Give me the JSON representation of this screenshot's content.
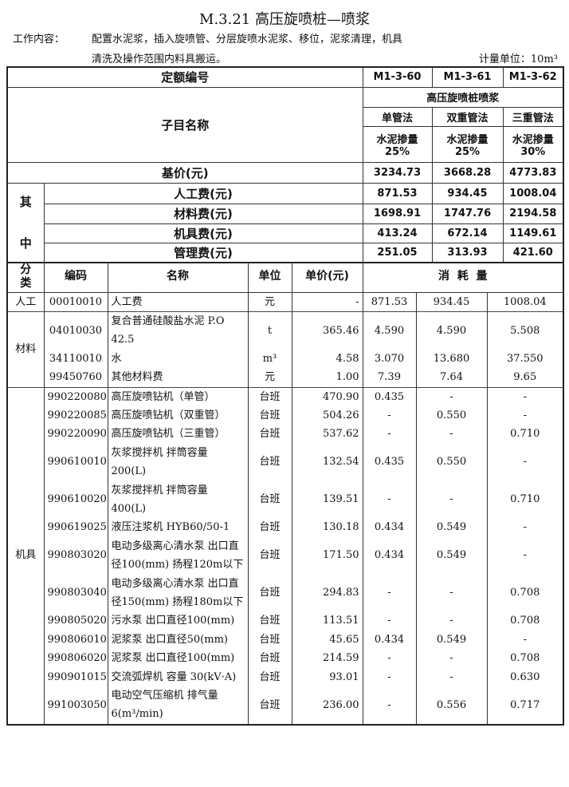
{
  "title": "M.3.21 高压旋喷桩—喷浆",
  "work_content_label": "工作内容：",
  "work_content_line1": "配置水泥浆，插入旋喷管、分层旋喷水泥浆、移位，泥浆清理，机具",
  "work_content_line2": "清洗及操作范围内料具搬运。",
  "unit": "计量单位：10m³",
  "header": {
    "quota_no_label": "定额编号",
    "quota_nos": [
      "M1-3-60",
      "M1-3-61",
      "M1-3-62"
    ],
    "item_name_label": "子目名称",
    "group": "高压旋喷桩喷浆",
    "methods": [
      "单管法",
      "双重管法",
      "三重管法"
    ],
    "cement_label": "水泥掺量",
    "cement_rates": [
      "25%",
      "25%",
      "30%"
    ],
    "base_price_label": "基价(元)",
    "base_prices": [
      "3234.73",
      "3668.28",
      "4773.83"
    ],
    "of_which_label": [
      "其",
      "中"
    ],
    "costs": [
      {
        "label": "人工费(元)",
        "values": [
          "871.53",
          "934.45",
          "1008.04"
        ]
      },
      {
        "label": "材料费(元)",
        "values": [
          "1698.91",
          "1747.76",
          "2194.58"
        ]
      },
      {
        "label": "机具费(元)",
        "values": [
          "413.24",
          "672.14",
          "1149.61"
        ]
      },
      {
        "label": "管理费(元)",
        "values": [
          "251.05",
          "313.93",
          "421.60"
        ]
      }
    ]
  },
  "columns": {
    "category": "分类",
    "code": "编码",
    "name": "名称",
    "unit": "单位",
    "price": "单价(元)",
    "consumption": "消  耗  量"
  },
  "groups": [
    {
      "category": "人工",
      "rows": [
        {
          "code": "00010010",
          "name": "人工费",
          "unit": "元",
          "price": "-",
          "q": [
            "871.53",
            "934.45",
            "1008.04"
          ]
        }
      ]
    },
    {
      "category": "材料",
      "rows": [
        {
          "code": "04010030",
          "name": "复合普通硅酸盐水泥 P.O 42.5",
          "unit": "t",
          "price": "365.46",
          "q": [
            "4.590",
            "4.590",
            "5.508"
          ]
        },
        {
          "code": "34110010",
          "name": "水",
          "unit": "m³",
          "price": "4.58",
          "q": [
            "3.070",
            "13.680",
            "37.550"
          ]
        },
        {
          "code": "99450760",
          "name": "其他材料费",
          "unit": "元",
          "price": "1.00",
          "q": [
            "7.39",
            "7.64",
            "9.65"
          ]
        }
      ]
    },
    {
      "category": "机具",
      "rows": [
        {
          "code": "990220080",
          "name": "高压旋喷钻机（单管）",
          "unit": "台班",
          "price": "470.90",
          "q": [
            "0.435",
            "-",
            "-"
          ]
        },
        {
          "code": "990220085",
          "name": "高压旋喷钻机（双重管）",
          "unit": "台班",
          "price": "504.26",
          "q": [
            "-",
            "0.550",
            "-"
          ]
        },
        {
          "code": "990220090",
          "name": "高压旋喷钻机（三重管）",
          "unit": "台班",
          "price": "537.62",
          "q": [
            "-",
            "-",
            "0.710"
          ]
        },
        {
          "code": "990610010",
          "name": "灰浆搅拌机 拌筒容量 200(L)",
          "unit": "台班",
          "price": "132.54",
          "q": [
            "0.435",
            "0.550",
            "-"
          ]
        },
        {
          "code": "990610020",
          "name": "灰浆搅拌机 拌筒容量 400(L)",
          "unit": "台班",
          "price": "139.51",
          "q": [
            "-",
            "-",
            "0.710"
          ]
        },
        {
          "code": "990619025",
          "name": "液压注浆机 HYB60/50-1",
          "unit": "台班",
          "price": "130.18",
          "q": [
            "0.434",
            "0.549",
            "-"
          ]
        },
        {
          "code": "990803020",
          "name": "电动多级离心清水泵 出口直径100(mm) 扬程120m以下",
          "unit": "台班",
          "price": "171.50",
          "q": [
            "0.434",
            "0.549",
            "-"
          ]
        },
        {
          "code": "990803040",
          "name": "电动多级离心清水泵 出口直径150(mm) 扬程180m以下",
          "unit": "台班",
          "price": "294.83",
          "q": [
            "-",
            "-",
            "0.708"
          ]
        },
        {
          "code": "990805020",
          "name": "污水泵 出口直径100(mm)",
          "unit": "台班",
          "price": "113.51",
          "q": [
            "-",
            "-",
            "0.708"
          ]
        },
        {
          "code": "990806010",
          "name": "泥浆泵 出口直径50(mm)",
          "unit": "台班",
          "price": "45.65",
          "q": [
            "0.434",
            "0.549",
            "-"
          ]
        },
        {
          "code": "990806020",
          "name": "泥浆泵 出口直径100(mm)",
          "unit": "台班",
          "price": "214.59",
          "q": [
            "-",
            "-",
            "0.708"
          ]
        },
        {
          "code": "990901015",
          "name": "交流弧焊机 容量 30(kV·A)",
          "unit": "台班",
          "price": "93.01",
          "q": [
            "-",
            "-",
            "0.630"
          ]
        },
        {
          "code": "991003050",
          "name": "电动空气压缩机 排气量6(m³/min)",
          "unit": "台班",
          "price": "236.00",
          "q": [
            "-",
            "0.556",
            "0.717"
          ]
        }
      ]
    }
  ]
}
